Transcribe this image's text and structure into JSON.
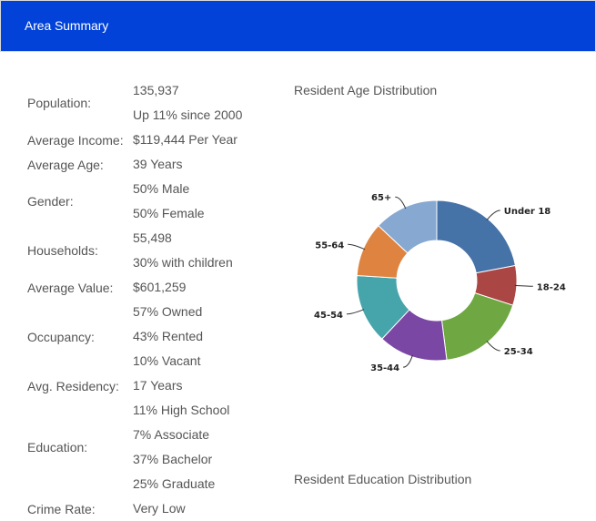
{
  "panel": {
    "title": "Area Summary"
  },
  "summary": [
    {
      "label": "Population:",
      "values": [
        "135,937",
        "Up 11% since 2000"
      ]
    },
    {
      "label": "Average Income:",
      "values": [
        "$119,444 Per Year"
      ]
    },
    {
      "label": "Average Age:",
      "values": [
        "39 Years"
      ]
    },
    {
      "label": "Gender:",
      "values": [
        "50% Male",
        "50% Female"
      ]
    },
    {
      "label": "Households:",
      "values": [
        "55,498",
        "30% with children"
      ]
    },
    {
      "label": "Average Value:",
      "values": [
        "$601,259"
      ]
    },
    {
      "label": "Occupancy:",
      "values": [
        "57% Owned",
        "43% Rented",
        "10% Vacant"
      ]
    },
    {
      "label": "Avg. Residency:",
      "values": [
        "17 Years"
      ]
    },
    {
      "label": "Education:",
      "values": [
        "11% High School",
        "7% Associate",
        "37% Bachelor",
        "25% Graduate"
      ]
    },
    {
      "label": "Crime Rate:",
      "values": [
        "Very Low"
      ]
    }
  ],
  "age_title": "Resident Age Distribution",
  "education_title": "Resident Education Distribution",
  "chart_data": {
    "type": "pie",
    "variant": "donut",
    "title": "",
    "categories": [
      "Under 18",
      "18-24",
      "25-34",
      "35-44",
      "45-54",
      "55-64",
      "65+"
    ],
    "values": [
      22,
      8,
      18,
      14,
      14,
      11,
      13
    ],
    "colors": [
      "#4572a7",
      "#aa4643",
      "#6fa842",
      "#7b47a5",
      "#46a5ab",
      "#de8440",
      "#87a8d1"
    ],
    "legend": "none"
  }
}
